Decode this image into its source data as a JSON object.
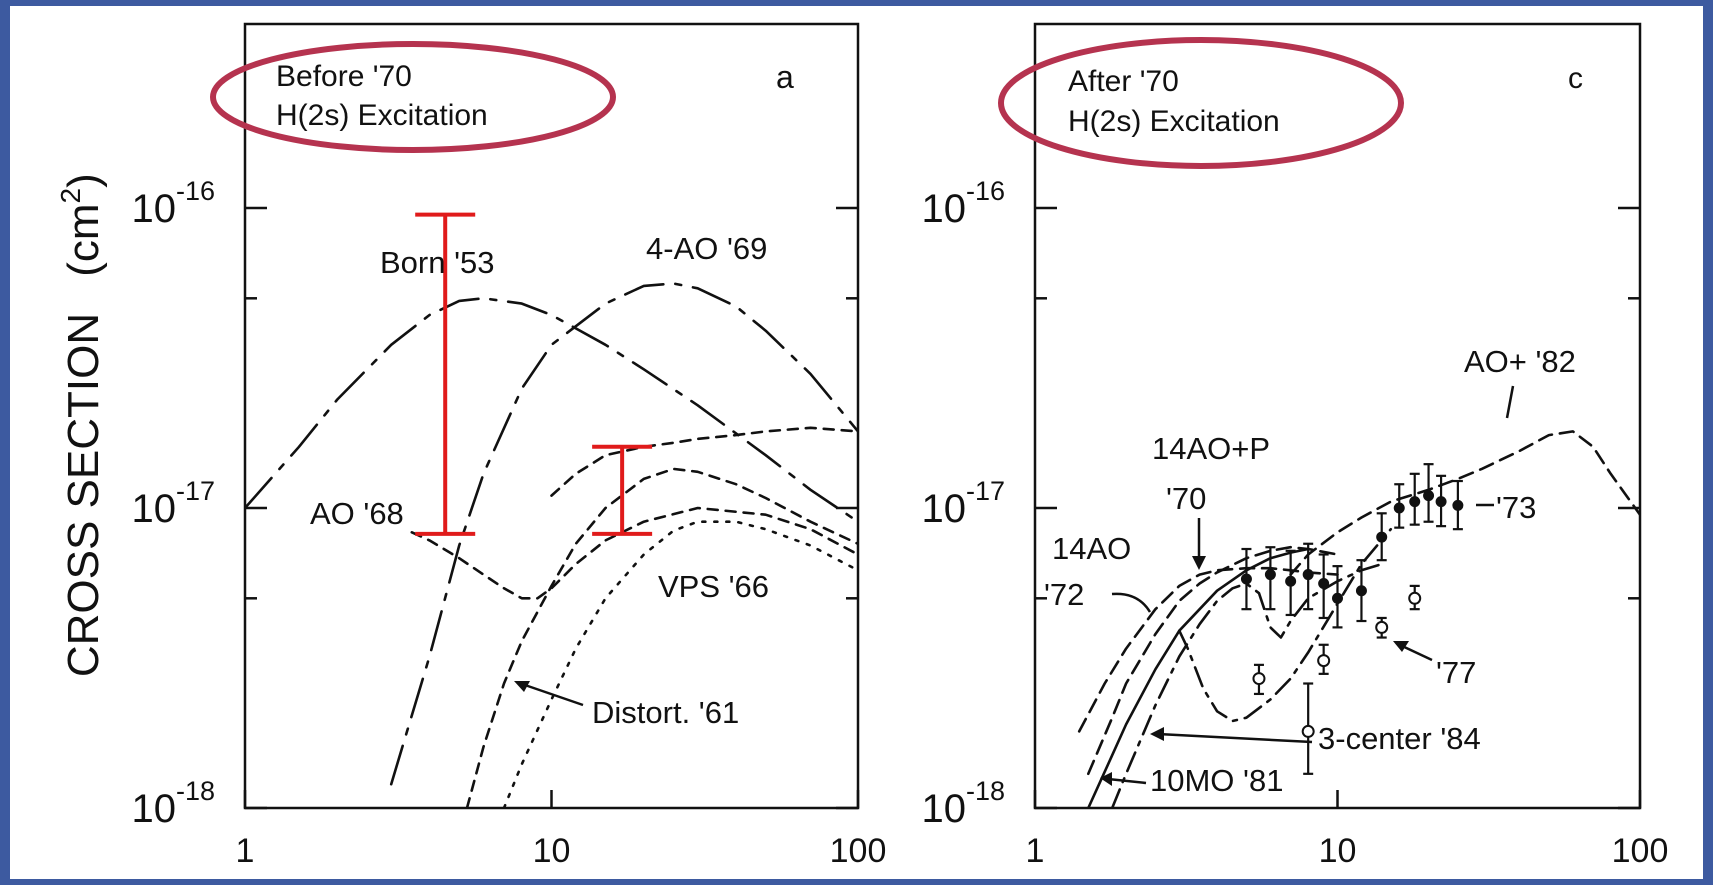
{
  "colors": {
    "frame": "#3d5aa0",
    "oval": "#b5334f",
    "errorbar": "#e01b1b",
    "ink": "#111111"
  },
  "ylabel": "CROSS SECTION",
  "yunit": "(cm",
  "yunit_sup": "2",
  "yunit_close": ")",
  "chart_data": [
    {
      "type": "line",
      "panel": "a",
      "title_lines": [
        "Before '70",
        "H(2s) Excitation"
      ],
      "x_scale": "log",
      "y_scale": "log",
      "xlim": [
        1,
        100
      ],
      "ylim": [
        1e-18,
        1e-16
      ],
      "xticks": [
        "1",
        "10",
        "100"
      ],
      "yticks": [
        {
          "value": 1e-16,
          "base": "10",
          "exp": "-16"
        },
        {
          "value": 1e-17,
          "base": "10",
          "exp": "-17"
        },
        {
          "value": 1e-18,
          "base": "10",
          "exp": "-18"
        }
      ],
      "grid": false,
      "series": [
        {
          "name": "Born '53",
          "dash": "40,12,6,12",
          "x": [
            1,
            1.5,
            2,
            3,
            4,
            5,
            6,
            8,
            10,
            15,
            20,
            30,
            50,
            70,
            100
          ],
          "y": [
            1e-17,
            1.6e-17,
            2.3e-17,
            3.5e-17,
            4.4e-17,
            4.9e-17,
            5e-17,
            4.8e-17,
            4.4e-17,
            3.5e-17,
            2.9e-17,
            2.2e-17,
            1.5e-17,
            1.15e-17,
            9e-18
          ]
        },
        {
          "name": "4-AO '69",
          "dash": "40,12,6,12",
          "x": [
            3,
            4,
            5,
            6,
            8,
            10,
            15,
            20,
            25,
            30,
            40,
            50,
            70,
            100
          ],
          "y": [
            1.2e-18,
            3.2e-18,
            7.5e-18,
            1.3e-17,
            2.5e-17,
            3.5e-17,
            4.8e-17,
            5.5e-17,
            5.6e-17,
            5.4e-17,
            4.7e-17,
            3.9e-17,
            2.8e-17,
            1.8e-17
          ]
        },
        {
          "name": "AO '68",
          "dash": "10,8",
          "x": [
            3.5,
            4,
            5,
            6,
            7,
            8,
            9,
            10,
            12,
            15,
            20,
            30,
            50,
            70,
            100
          ],
          "y": [
            8.3e-18,
            7.8e-18,
            6.8e-18,
            6e-18,
            5.4e-18,
            5e-18,
            5e-18,
            5.4e-18,
            6.5e-18,
            7.8e-18,
            9e-18,
            1e-17,
            9.5e-18,
            8.5e-18,
            7e-18
          ]
        },
        {
          "name": "Distort. '61",
          "dash": "10,8",
          "x": [
            5.3,
            6,
            7,
            8,
            10,
            12,
            15,
            20,
            25,
            30,
            40,
            50,
            70,
            100
          ],
          "y": [
            1e-18,
            1.6e-18,
            2.6e-18,
            3.6e-18,
            5.5e-18,
            7.6e-18,
            1e-17,
            1.25e-17,
            1.35e-17,
            1.32e-17,
            1.2e-17,
            1.08e-17,
            9e-18,
            7.6e-18
          ]
        },
        {
          "name": "VPS '66",
          "dash": "3,9",
          "x": [
            7,
            8,
            10,
            12,
            15,
            20,
            25,
            30,
            40,
            50,
            70,
            100
          ],
          "y": [
            1e-18,
            1.4e-18,
            2.3e-18,
            3.4e-18,
            5e-18,
            7e-18,
            8.4e-18,
            9e-18,
            9e-18,
            8.5e-18,
            7.5e-18,
            6.2e-18
          ]
        },
        {
          "name": "",
          "dash": "10,8",
          "x": [
            10,
            12,
            15,
            20,
            25,
            30,
            40,
            50,
            70,
            100
          ],
          "y": [
            1.1e-17,
            1.3e-17,
            1.5e-17,
            1.6e-17,
            1.65e-17,
            1.7e-17,
            1.75e-17,
            1.8e-17,
            1.85e-17,
            1.8e-17
          ]
        }
      ],
      "annotations": [
        "Born '53",
        "4-AO '69",
        "AO '68",
        "VPS '66",
        "Distort. '61",
        "a"
      ],
      "error_bars": [
        {
          "x": 4.5,
          "y_low": 8.2e-18,
          "y_high": 9.5e-17
        },
        {
          "x": 17,
          "y_low": 8.2e-18,
          "y_high": 1.6e-17
        }
      ]
    },
    {
      "type": "line",
      "panel": "c",
      "title_lines": [
        "After '70",
        "H(2s) Excitation"
      ],
      "x_scale": "log",
      "y_scale": "log",
      "xlim": [
        1,
        100
      ],
      "ylim": [
        1e-18,
        1e-16
      ],
      "xticks": [
        "1",
        "10",
        "100"
      ],
      "yticks": [
        {
          "value": 1e-16,
          "base": "10",
          "exp": "-16"
        },
        {
          "value": 1e-17,
          "base": "10",
          "exp": "-17"
        },
        {
          "value": 1e-18,
          "base": "10",
          "exp": "-18"
        }
      ],
      "grid": false,
      "series": [
        {
          "name": "14AO '72",
          "dash": "14,8",
          "x": [
            1.4,
            1.7,
            2,
            2.5,
            3,
            3.5,
            4,
            5,
            6,
            7,
            8,
            10
          ],
          "y": [
            1.8e-18,
            2.6e-18,
            3.4e-18,
            4.6e-18,
            5.5e-18,
            6e-18,
            6.2e-18,
            6.3e-18,
            6.3e-18,
            6.2e-18,
            6.1e-18,
            6e-18
          ]
        },
        {
          "name": "14AO+P '70",
          "dash": "14,8",
          "x": [
            1.5,
            1.8,
            2,
            2.5,
            3,
            3.5,
            4,
            5,
            6,
            7,
            8,
            10
          ],
          "y": [
            1.3e-18,
            2e-18,
            2.6e-18,
            3.8e-18,
            4.9e-18,
            5.6e-18,
            6.1e-18,
            6.8e-18,
            7.2e-18,
            7.4e-18,
            7.3e-18,
            7e-18
          ]
        },
        {
          "name": "10MO '81",
          "dash": "",
          "x": [
            1.5,
            1.8,
            2,
            2.5,
            3,
            4,
            5,
            6,
            7,
            8
          ],
          "y": [
            1e-18,
            1.5e-18,
            1.9e-18,
            2.9e-18,
            3.9e-18,
            5.3e-18,
            6.2e-18,
            6.8e-18,
            7.1e-18,
            7.3e-18
          ]
        },
        {
          "name": "3-center '84",
          "dash": "20,8,4,8",
          "x": [
            1.8,
            2,
            2.5,
            3,
            3.5,
            4,
            4.5,
            5,
            5.5,
            6,
            6.5,
            7,
            8,
            10,
            12,
            14
          ],
          "y": [
            1e-18,
            1.3e-18,
            2.2e-18,
            3.2e-18,
            4.1e-18,
            4.9e-18,
            5.4e-18,
            5.6e-18,
            5.2e-18,
            4e-18,
            3.7e-18,
            4.2e-18,
            5e-18,
            5.7e-18,
            6.2e-18,
            6.5e-18
          ]
        },
        {
          "name": "",
          "dash": "20,8,4,8",
          "x": [
            3,
            3.2,
            3.6,
            4,
            4.5,
            5,
            6,
            7,
            8,
            10,
            12,
            15
          ],
          "y": [
            3.9e-18,
            3.4e-18,
            2.5e-18,
            2.1e-18,
            1.95e-18,
            2e-18,
            2.3e-18,
            2.7e-18,
            3.3e-18,
            4.8e-18,
            6.5e-18,
            8.5e-18
          ]
        },
        {
          "name": "AO+ '82",
          "dash": "14,8",
          "x": [
            7,
            8,
            10,
            12,
            15,
            20,
            25,
            30,
            40,
            50,
            60,
            70,
            80,
            100
          ],
          "y": [
            6e-18,
            7e-18,
            8.3e-18,
            9.3e-18,
            1.05e-17,
            1.15e-17,
            1.25e-17,
            1.35e-17,
            1.55e-17,
            1.75e-17,
            1.8e-17,
            1.6e-17,
            1.3e-17,
            9.5e-18
          ]
        }
      ],
      "experimental": [
        {
          "name": "'73",
          "marker": "filled",
          "x": [
            5,
            6,
            7,
            8,
            9,
            10,
            12,
            14,
            16,
            18,
            20,
            22,
            25
          ],
          "y": [
            5.8e-18,
            6e-18,
            5.7e-18,
            6e-18,
            5.6e-18,
            5e-18,
            5.3e-18,
            8e-18,
            1e-17,
            1.05e-17,
            1.1e-17,
            1.05e-17,
            1.02e-17
          ],
          "y_low": [
            4.6e-18,
            4.6e-18,
            4.4e-18,
            4.6e-18,
            4.3e-18,
            4e-18,
            4.2e-18,
            6.7e-18,
            8.6e-18,
            8.8e-18,
            9e-18,
            8.7e-18,
            8.5e-18
          ],
          "y_high": [
            7.3e-18,
            7.4e-18,
            7.2e-18,
            7.6e-18,
            7e-18,
            6.4e-18,
            6.7e-18,
            9.6e-18,
            1.2e-17,
            1.3e-17,
            1.4e-17,
            1.28e-17,
            1.23e-17
          ]
        },
        {
          "name": "'77",
          "marker": "open",
          "x": [
            5.5,
            9,
            14,
            18
          ],
          "y": [
            2.7e-18,
            3.1e-18,
            4e-18,
            5e-18
          ],
          "y_low": [
            2.4e-18,
            2.8e-18,
            3.7e-18,
            4.6e-18
          ],
          "y_high": [
            3e-18,
            3.5e-18,
            4.3e-18,
            5.5e-18
          ]
        },
        {
          "name": "3-center '84 point",
          "marker": "open",
          "x": [
            8
          ],
          "y": [
            1.8e-18
          ],
          "y_low": [
            1.3e-18
          ],
          "y_high": [
            2.6e-18
          ]
        }
      ],
      "annotations": [
        "AO+ '82",
        "14AO+P",
        "'70",
        "14AO",
        "'72",
        "'73",
        "'77",
        "3-center '84",
        "10MO '81",
        "c"
      ]
    }
  ]
}
